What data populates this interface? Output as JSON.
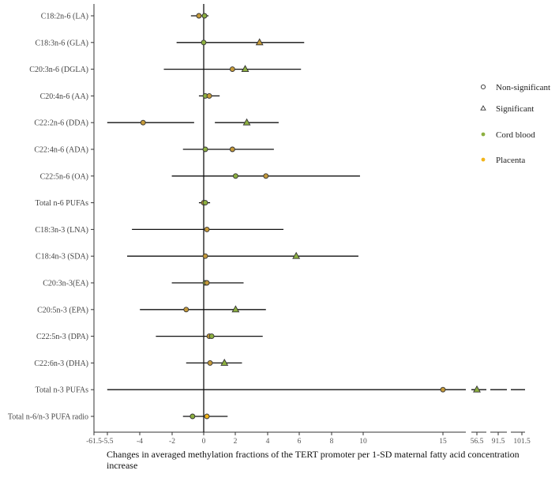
{
  "chart_data": {
    "type": "forest",
    "xlabel": "Changes in averaged methylation fractions of the TERT promoter per 1-SD maternal fatty acid concentration increase",
    "x_ticks": [
      "-61.5",
      "-5.5",
      "-4",
      "-2",
      "0",
      "2",
      "4",
      "6",
      "8",
      "10",
      "15",
      "56.5",
      "91.5",
      "101.5"
    ],
    "legend": [
      {
        "name": "Non-significant",
        "symbol": "circle"
      },
      {
        "name": "Significant",
        "symbol": "triangle"
      },
      {
        "name": "Cord blood",
        "symbol": "dot",
        "color": "#8db040"
      },
      {
        "name": "Placenta",
        "symbol": "dot",
        "color": "#f2b51a"
      }
    ],
    "colors": {
      "cord": "#8db040",
      "placenta": "#f2b51a",
      "overlap": "#c59a3a"
    },
    "rows": [
      {
        "label": "C18:2n-6 (LA)",
        "ci": [
          -0.8,
          0.3
        ],
        "points": [
          {
            "v": -0.3,
            "s": "circle",
            "c": "overlap"
          },
          {
            "v": 0.05,
            "s": "circle",
            "c": "cord"
          }
        ]
      },
      {
        "label": "C18:3n-6 (GLA)",
        "ci": [
          -1.7,
          6.3
        ],
        "points": [
          {
            "v": 0.0,
            "s": "circle",
            "c": "cord"
          },
          {
            "v": 3.5,
            "s": "triangle",
            "c": "overlap"
          }
        ]
      },
      {
        "label": "C20:3n-6 (DGLA)",
        "ci": [
          -2.5,
          6.1
        ],
        "points": [
          {
            "v": 1.8,
            "s": "circle",
            "c": "overlap"
          },
          {
            "v": 2.6,
            "s": "triangle",
            "c": "cord"
          }
        ]
      },
      {
        "label": "C20:4n-6 (AA)",
        "ci": [
          -0.3,
          1.0
        ],
        "points": [
          {
            "v": 0.1,
            "s": "circle",
            "c": "cord"
          },
          {
            "v": 0.35,
            "s": "circle",
            "c": "overlap"
          }
        ]
      },
      {
        "label": "C22:2n-6 (DDA)",
        "ci": [
          -6.1,
          4.7
        ],
        "gap": [
          -0.6,
          0.7
        ],
        "points": [
          {
            "v": -3.8,
            "s": "circle",
            "c": "overlap"
          },
          {
            "v": 2.7,
            "s": "triangle",
            "c": "cord"
          }
        ]
      },
      {
        "label": "C22:4n-6 (ADA)",
        "ci": [
          -1.3,
          4.4
        ],
        "points": [
          {
            "v": 0.1,
            "s": "circle",
            "c": "cord"
          },
          {
            "v": 1.8,
            "s": "circle",
            "c": "overlap"
          }
        ]
      },
      {
        "label": "C22:5n-6 (OA)",
        "ci": [
          -2.0,
          9.8
        ],
        "points": [
          {
            "v": 2.0,
            "s": "circle",
            "c": "cord"
          },
          {
            "v": 3.9,
            "s": "circle",
            "c": "overlap"
          }
        ]
      },
      {
        "label": "Total n-6 PUFAs",
        "ci": [
          -0.3,
          0.4
        ],
        "points": [
          {
            "v": 0.0,
            "s": "circle",
            "c": "overlap"
          },
          {
            "v": 0.1,
            "s": "circle",
            "c": "cord"
          }
        ]
      },
      {
        "label": "C18:3n-3 (LNA)",
        "ci": [
          -4.5,
          5.0
        ],
        "points": [
          {
            "v": 0.2,
            "s": "circle",
            "c": "overlap"
          }
        ]
      },
      {
        "label": "C18:4n-3 (SDA)",
        "ci": [
          -4.8,
          9.7
        ],
        "points": [
          {
            "v": 0.1,
            "s": "circle",
            "c": "overlap"
          },
          {
            "v": 5.8,
            "s": "triangle",
            "c": "cord"
          }
        ]
      },
      {
        "label": "C20:3n-3(EA)",
        "ci": [
          -2.0,
          2.5
        ],
        "points": [
          {
            "v": 0.1,
            "s": "circle",
            "c": "cord"
          },
          {
            "v": 0.2,
            "s": "circle",
            "c": "overlap"
          }
        ]
      },
      {
        "label": "C20:5n-3 (EPA)",
        "ci": [
          -4.0,
          3.9
        ],
        "points": [
          {
            "v": -1.1,
            "s": "circle",
            "c": "overlap"
          },
          {
            "v": 2.0,
            "s": "triangle",
            "c": "cord"
          }
        ]
      },
      {
        "label": "C22:5n-3 (DPA)",
        "ci": [
          -3.0,
          3.7
        ],
        "points": [
          {
            "v": 0.35,
            "s": "circle",
            "c": "overlap"
          },
          {
            "v": 0.5,
            "s": "circle",
            "c": "cord"
          }
        ]
      },
      {
        "label": "C22:6n-3 (DHA)",
        "ci": [
          -1.1,
          2.4
        ],
        "points": [
          {
            "v": 0.4,
            "s": "circle",
            "c": "overlap"
          },
          {
            "v": 1.3,
            "s": "triangle",
            "c": "cord"
          }
        ]
      },
      {
        "label": "Total n-3 PUFAs",
        "ci": [
          -6.1,
          101.5
        ],
        "points": [
          {
            "v": 15.0,
            "s": "circle",
            "c": "overlap"
          },
          {
            "v": 56.5,
            "s": "triangle",
            "c": "cord"
          }
        ]
      },
      {
        "label": "Total n-6/n-3 PUFA radio",
        "ci": [
          -1.3,
          1.5
        ],
        "points": [
          {
            "v": -0.7,
            "s": "circle",
            "c": "cord"
          },
          {
            "v": 0.2,
            "s": "circle",
            "c": "placenta"
          }
        ]
      }
    ]
  }
}
